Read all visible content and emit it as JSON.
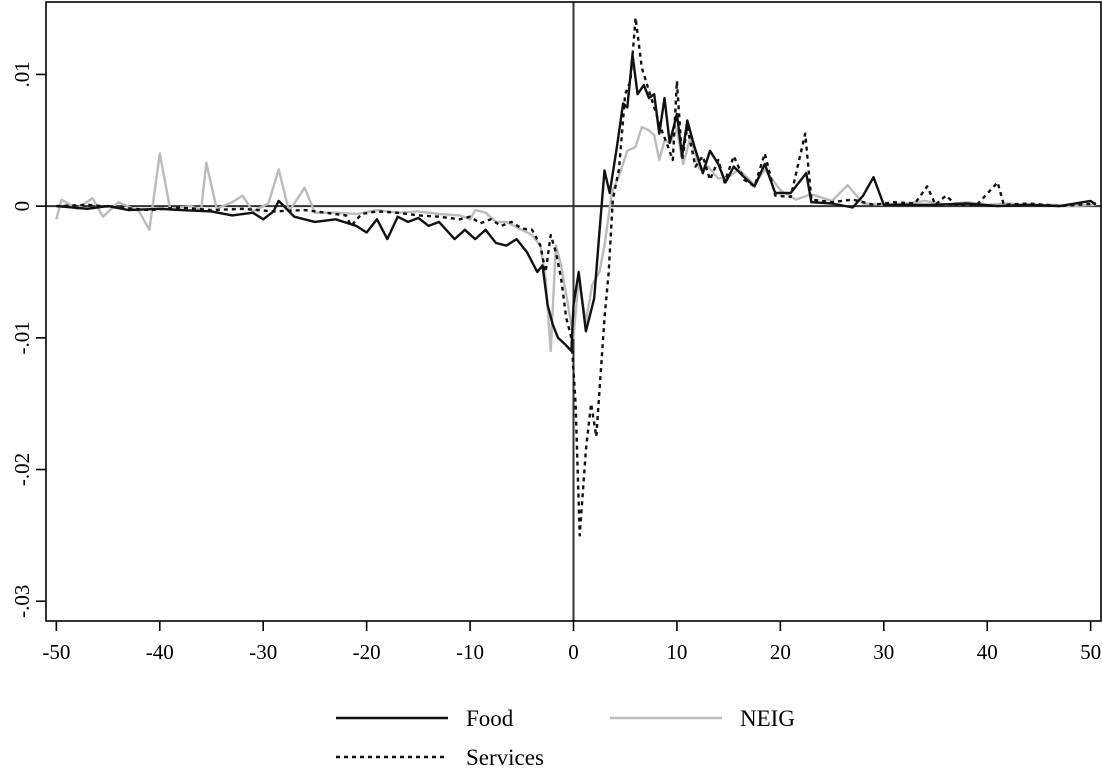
{
  "chart_data": {
    "type": "line",
    "title": "",
    "xlabel": "",
    "ylabel": "",
    "xlim": [
      -51,
      51
    ],
    "ylim": [
      -0.0315,
      0.0155
    ],
    "x_ticks": [
      {
        "value": -50,
        "label": "-50"
      },
      {
        "value": -40,
        "label": "-40"
      },
      {
        "value": -30,
        "label": "-30"
      },
      {
        "value": -20,
        "label": "-20"
      },
      {
        "value": -10,
        "label": "-10"
      },
      {
        "value": 0,
        "label": "0"
      },
      {
        "value": 10,
        "label": "10"
      },
      {
        "value": 20,
        "label": "20"
      },
      {
        "value": 30,
        "label": "30"
      },
      {
        "value": 40,
        "label": "40"
      },
      {
        "value": 50,
        "label": "50"
      }
    ],
    "y_ticks": [
      {
        "value": 0.01,
        "label": ".01"
      },
      {
        "value": 0,
        "label": "0"
      },
      {
        "value": -0.01,
        "label": "-.01"
      },
      {
        "value": -0.02,
        "label": "-.02"
      },
      {
        "value": -0.03,
        "label": "-.03"
      }
    ],
    "reference_lines": {
      "x": 0,
      "y": 0
    },
    "grid": false,
    "legend": {
      "position": "bottom",
      "columns": 2
    },
    "series": [
      {
        "name": "Food",
        "color": "#111111",
        "style": "solid",
        "points": [
          [
            -50,
            0
          ],
          [
            -47,
            -0.0002
          ],
          [
            -45,
            0
          ],
          [
            -43,
            -0.0003
          ],
          [
            -40,
            -0.0002
          ],
          [
            -38,
            -0.0003
          ],
          [
            -35,
            -0.0004
          ],
          [
            -33,
            -0.0007
          ],
          [
            -31,
            -0.0005
          ],
          [
            -30,
            -0.001
          ],
          [
            -29,
            -0.0004
          ],
          [
            -28.5,
            0.0004
          ],
          [
            -27,
            -0.0008
          ],
          [
            -25,
            -0.0012
          ],
          [
            -23,
            -0.001
          ],
          [
            -21,
            -0.0015
          ],
          [
            -20,
            -0.002
          ],
          [
            -19,
            -0.001
          ],
          [
            -18,
            -0.0025
          ],
          [
            -17,
            -0.0008
          ],
          [
            -16,
            -0.0012
          ],
          [
            -15,
            -0.0009
          ],
          [
            -14,
            -0.0015
          ],
          [
            -13,
            -0.0012
          ],
          [
            -11.5,
            -0.0025
          ],
          [
            -10.5,
            -0.0018
          ],
          [
            -9.5,
            -0.0025
          ],
          [
            -8.5,
            -0.0018
          ],
          [
            -7.5,
            -0.0028
          ],
          [
            -6.5,
            -0.003
          ],
          [
            -5.5,
            -0.0025
          ],
          [
            -4.5,
            -0.0035
          ],
          [
            -3.5,
            -0.005
          ],
          [
            -3,
            -0.0045
          ],
          [
            -2.5,
            -0.0075
          ],
          [
            -2,
            -0.009
          ],
          [
            -1.5,
            -0.01
          ],
          [
            -0.8,
            -0.0105
          ],
          [
            -0.2,
            -0.011
          ],
          [
            0,
            -0.0075
          ],
          [
            0.5,
            -0.005
          ],
          [
            1.2,
            -0.0095
          ],
          [
            2,
            -0.007
          ],
          [
            2.5,
            -0.002
          ],
          [
            3,
            0.0027
          ],
          [
            3.5,
            0.001
          ],
          [
            4.2,
            0.0045
          ],
          [
            4.8,
            0.0078
          ],
          [
            5.2,
            0.0075
          ],
          [
            5.7,
            0.0115
          ],
          [
            6.2,
            0.0085
          ],
          [
            6.8,
            0.0092
          ],
          [
            7.3,
            0.0082
          ],
          [
            7.8,
            0.0085
          ],
          [
            8.3,
            0.0055
          ],
          [
            8.8,
            0.0082
          ],
          [
            9.3,
            0.0048
          ],
          [
            10,
            0.007
          ],
          [
            10.5,
            0.0038
          ],
          [
            11,
            0.0065
          ],
          [
            11.7,
            0.0045
          ],
          [
            12.5,
            0.0025
          ],
          [
            13.2,
            0.0042
          ],
          [
            14,
            0.0032
          ],
          [
            14.7,
            0.0018
          ],
          [
            15.5,
            0.003
          ],
          [
            16.5,
            0.0022
          ],
          [
            17.5,
            0.0015
          ],
          [
            18.5,
            0.0032
          ],
          [
            19.5,
            0.001
          ],
          [
            21,
            0.001
          ],
          [
            22.5,
            0.0025
          ],
          [
            23,
            0.0003
          ],
          [
            25,
            0.0002
          ],
          [
            27,
            -0.0001
          ],
          [
            28,
            0.0008
          ],
          [
            29,
            0.0022
          ],
          [
            30,
            0.0001
          ],
          [
            32,
            0.0001
          ],
          [
            35,
            0.0001
          ],
          [
            38,
            0.0002
          ],
          [
            41,
            0
          ],
          [
            44,
            0.0001
          ],
          [
            47,
            0
          ],
          [
            50,
            0.0004
          ],
          [
            50.5,
            0.0001
          ]
        ]
      },
      {
        "name": "NEIG",
        "color": "#bbbbbb",
        "style": "solid",
        "points": [
          [
            -50,
            -0.001
          ],
          [
            -49.5,
            0.0005
          ],
          [
            -48,
            -0.0002
          ],
          [
            -46.5,
            0.0006
          ],
          [
            -45.5,
            -0.0008
          ],
          [
            -44,
            0.0003
          ],
          [
            -42,
            -0.0004
          ],
          [
            -41,
            -0.0018
          ],
          [
            -40,
            0.004
          ],
          [
            -39,
            -0.0002
          ],
          [
            -37,
            0
          ],
          [
            -36,
            -0.0003
          ],
          [
            -35.5,
            0.0033
          ],
          [
            -34.5,
            -0.0002
          ],
          [
            -33,
            0.0003
          ],
          [
            -32,
            0.0008
          ],
          [
            -31,
            -0.0004
          ],
          [
            -29.5,
            0.0002
          ],
          [
            -28.5,
            0.0028
          ],
          [
            -27.5,
            -0.0004
          ],
          [
            -26,
            0.0014
          ],
          [
            -25,
            -0.0005
          ],
          [
            -23,
            -0.0005
          ],
          [
            -21,
            -0.0006
          ],
          [
            -19,
            -0.0003
          ],
          [
            -17,
            -0.0005
          ],
          [
            -15,
            -0.0004
          ],
          [
            -13,
            -0.0006
          ],
          [
            -11,
            -0.0007
          ],
          [
            -10,
            -0.001
          ],
          [
            -9.5,
            -0.0003
          ],
          [
            -8.5,
            -0.0005
          ],
          [
            -7.5,
            -0.0012
          ],
          [
            -6.5,
            -0.0012
          ],
          [
            -5,
            -0.0018
          ],
          [
            -4,
            -0.0022
          ],
          [
            -3.2,
            -0.003
          ],
          [
            -2.7,
            -0.0055
          ],
          [
            -2.2,
            -0.011
          ],
          [
            -1.7,
            -0.003
          ],
          [
            -1.2,
            -0.0045
          ],
          [
            -0.6,
            -0.0072
          ],
          [
            0,
            -0.01
          ],
          [
            0.5,
            -0.0055
          ],
          [
            1.2,
            -0.0088
          ],
          [
            1.8,
            -0.006
          ],
          [
            2.5,
            -0.005
          ],
          [
            3,
            -0.003
          ],
          [
            3.7,
            0.001
          ],
          [
            4.5,
            0.0025
          ],
          [
            5.2,
            0.0042
          ],
          [
            6,
            0.0045
          ],
          [
            6.6,
            0.006
          ],
          [
            7.2,
            0.0058
          ],
          [
            7.8,
            0.0054
          ],
          [
            8.3,
            0.0035
          ],
          [
            8.8,
            0.005
          ],
          [
            9.3,
            0.0048
          ],
          [
            10,
            0.0058
          ],
          [
            10.6,
            0.0032
          ],
          [
            11.3,
            0.0052
          ],
          [
            12.2,
            0.0028
          ],
          [
            13,
            0.003
          ],
          [
            14,
            0.0021
          ],
          [
            15,
            0.0022
          ],
          [
            16,
            0.0028
          ],
          [
            17.5,
            0.0016
          ],
          [
            18.5,
            0.0028
          ],
          [
            20,
            0.0012
          ],
          [
            21.5,
            0.0005
          ],
          [
            23,
            0.0009
          ],
          [
            25,
            0.0004
          ],
          [
            26.5,
            0.0016
          ],
          [
            28,
            0.0002
          ],
          [
            30,
            0.0001
          ],
          [
            32,
            0.0002
          ],
          [
            34,
            0.0004
          ],
          [
            36,
            0.0001
          ],
          [
            38,
            0.0003
          ],
          [
            40,
            0.0001
          ],
          [
            42,
            0.0002
          ],
          [
            44,
            0.0001
          ],
          [
            46,
            0.0001
          ],
          [
            48,
            0
          ],
          [
            50.5,
            0.0001
          ]
        ]
      },
      {
        "name": "Services",
        "color": "#111111",
        "style": "dotted",
        "points": [
          [
            -50,
            0
          ],
          [
            -47,
            0.0001
          ],
          [
            -44,
            -0.0001
          ],
          [
            -41,
            -0.0003
          ],
          [
            -38,
            -0.0001
          ],
          [
            -35,
            -0.0003
          ],
          [
            -32,
            -0.0002
          ],
          [
            -29,
            -0.0004
          ],
          [
            -26,
            -0.0003
          ],
          [
            -24,
            -0.0005
          ],
          [
            -22,
            -0.0007
          ],
          [
            -21.5,
            -0.0015
          ],
          [
            -20.5,
            -0.0006
          ],
          [
            -19,
            -0.0004
          ],
          [
            -17,
            -0.0005
          ],
          [
            -15,
            -0.0007
          ],
          [
            -13,
            -0.0008
          ],
          [
            -11,
            -0.001
          ],
          [
            -10,
            -0.0008
          ],
          [
            -9,
            -0.0013
          ],
          [
            -8,
            -0.001
          ],
          [
            -7,
            -0.0015
          ],
          [
            -6,
            -0.0012
          ],
          [
            -5,
            -0.0017
          ],
          [
            -4,
            -0.0018
          ],
          [
            -3.2,
            -0.003
          ],
          [
            -2.7,
            -0.005
          ],
          [
            -2.2,
            -0.0022
          ],
          [
            -1.7,
            -0.0035
          ],
          [
            -1.2,
            -0.0055
          ],
          [
            -0.7,
            -0.0085
          ],
          [
            -0.2,
            -0.01
          ],
          [
            0.2,
            -0.015
          ],
          [
            0.6,
            -0.025
          ],
          [
            1.2,
            -0.0185
          ],
          [
            1.7,
            -0.015
          ],
          [
            2.2,
            -0.0175
          ],
          [
            2.6,
            -0.013
          ],
          [
            3,
            -0.0085
          ],
          [
            3.4,
            -0.005
          ],
          [
            3.8,
            0.0005
          ],
          [
            4.4,
            0.0028
          ],
          [
            5,
            0.0085
          ],
          [
            5.5,
            0.0095
          ],
          [
            6,
            0.0143
          ],
          [
            6.6,
            0.0105
          ],
          [
            7.2,
            0.009
          ],
          [
            7.8,
            0.0075
          ],
          [
            8.4,
            0.006
          ],
          [
            9,
            0.0048
          ],
          [
            9.6,
            0.0035
          ],
          [
            10,
            0.0095
          ],
          [
            10.5,
            0.0035
          ],
          [
            11,
            0.006
          ],
          [
            11.8,
            0.003
          ],
          [
            12.5,
            0.0038
          ],
          [
            13.2,
            0.002
          ],
          [
            14,
            0.0035
          ],
          [
            14.6,
            0.0018
          ],
          [
            15.5,
            0.0038
          ],
          [
            16.5,
            0.002
          ],
          [
            17.5,
            0.0015
          ],
          [
            18.5,
            0.004
          ],
          [
            19.5,
            0.0008
          ],
          [
            21,
            0.0007
          ],
          [
            22.4,
            0.0055
          ],
          [
            23,
            0.0005
          ],
          [
            25,
            0.0003
          ],
          [
            27,
            0.0005
          ],
          [
            29,
            0.0001
          ],
          [
            31,
            0.0003
          ],
          [
            33,
            0.0002
          ],
          [
            34.2,
            0.0015
          ],
          [
            35,
            0.0001
          ],
          [
            36,
            0.0008
          ],
          [
            37,
            0.0001
          ],
          [
            39,
            0.0001
          ],
          [
            41,
            0.0018
          ],
          [
            41.6,
            0.0001
          ],
          [
            44,
            0.0002
          ],
          [
            47,
            0
          ],
          [
            50.5,
            0.0002
          ]
        ]
      }
    ]
  }
}
